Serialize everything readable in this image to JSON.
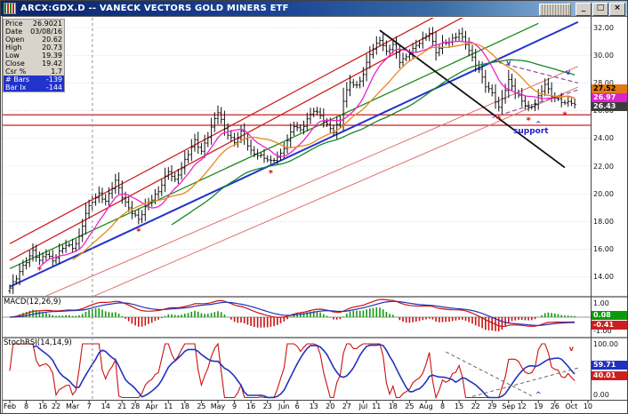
{
  "window": {
    "title": "ARCX:GDX.D -- VANECK VECTORS GOLD MINERS ETF",
    "controls": {
      "minimize": "_",
      "maximize": "□",
      "close": "×"
    }
  },
  "info_panel": {
    "rows": [
      {
        "label": "Price",
        "value": "26.9021"
      },
      {
        "label": "Date",
        "value": "03/08/16"
      },
      {
        "label": "Open",
        "value": "20.62"
      },
      {
        "label": "High",
        "value": "20.73"
      },
      {
        "label": "Low",
        "value": "19.39"
      },
      {
        "label": "Close",
        "value": "19.42"
      },
      {
        "label": "Csr %",
        "value": "1.7"
      }
    ],
    "highlight_rows": [
      {
        "label": "# Bars",
        "value": "-139"
      },
      {
        "label": "Bar Ix",
        "value": "-144"
      }
    ]
  },
  "price_axis": {
    "labels": [
      "32.00",
      "30.00",
      "28.00",
      "26.00",
      "24.00",
      "22.00",
      "20.00",
      "18.00",
      "16.00",
      "14.00"
    ],
    "tags": [
      {
        "value": "27.52",
        "bg": "#e07818",
        "fg": "#000000"
      },
      {
        "value": "26.97",
        "bg": "#dd22cc",
        "fg": "#ffffff"
      },
      {
        "value": "26.43",
        "bg": "#3c3c3c",
        "fg": "#ffffff"
      }
    ]
  },
  "macd_panel": {
    "label": "MACD(12,26,9)",
    "axis_labels": [
      "1.00",
      "-1.00"
    ],
    "tags": [
      {
        "value": "0.08",
        "bg": "#0a9a0a",
        "fg": "#ffffff"
      },
      {
        "value": "-0.41",
        "bg": "#cc2020",
        "fg": "#ffffff"
      }
    ]
  },
  "stoch_panel": {
    "label": "StochRSI(14,14,9)",
    "axis_labels": [
      "100.00",
      "0.00"
    ],
    "tags": [
      {
        "value": "59.71",
        "bg": "#2030c0",
        "fg": "#ffffff"
      },
      {
        "value": "40.01",
        "bg": "#cc2020",
        "fg": "#ffffff"
      }
    ]
  },
  "time_axis": {
    "ticks": [
      [
        "Feb",
        0
      ],
      [
        "8",
        5
      ],
      [
        "16",
        10
      ],
      [
        "22",
        14
      ],
      [
        "Mar",
        19
      ],
      [
        "7",
        24
      ],
      [
        "14",
        29
      ],
      [
        "21",
        34
      ],
      [
        "28",
        38
      ],
      [
        "Apr",
        43
      ],
      [
        "11",
        48
      ],
      [
        "18",
        53
      ],
      [
        "25",
        58
      ],
      [
        "May",
        63
      ],
      [
        "9",
        68
      ],
      [
        "16",
        73
      ],
      [
        "23",
        78
      ],
      [
        "Jun",
        83
      ],
      [
        "6",
        87
      ],
      [
        "13",
        92
      ],
      [
        "20",
        97
      ],
      [
        "27",
        102
      ],
      [
        "Jul",
        107
      ],
      [
        "11",
        111
      ],
      [
        "18",
        116
      ],
      [
        "25",
        121
      ],
      [
        "Aug",
        126
      ],
      [
        "8",
        131
      ],
      [
        "15",
        136
      ],
      [
        "22",
        141
      ],
      [
        "29",
        146
      ],
      [
        "Sep",
        151
      ],
      [
        "12",
        155
      ],
      [
        "19",
        160
      ],
      [
        "26",
        165
      ],
      [
        "Oct",
        170
      ],
      [
        "10",
        175
      ]
    ]
  },
  "annotations": {
    "support_label": "support",
    "asterisks": [
      [
        9,
        14.5
      ],
      [
        39,
        17.3
      ],
      [
        79,
        21.5
      ],
      [
        148,
        25.4
      ],
      [
        157,
        25.3
      ],
      [
        168,
        25.7
      ]
    ],
    "price_marks": [
      [
        "v",
        151,
        29.3,
        "#2233cc"
      ],
      [
        "v",
        169,
        28.6,
        "#2233cc"
      ],
      [
        "^",
        160,
        24.9,
        "#2233cc"
      ]
    ],
    "stoch_marks": [
      [
        "^",
        160,
        7,
        "#2233cc"
      ],
      [
        "v",
        170,
        92,
        "#cc2222"
      ]
    ],
    "stoch_dashed": [
      [
        132,
        85,
        158,
        3
      ],
      [
        140,
        2,
        172,
        55
      ]
    ]
  },
  "chart_data": {
    "type": "ohlc",
    "symbol": "ARCX:GDX.D",
    "title": "VANECK VECTORS GOLD MINERS ETF, daily bars Feb-Oct 2016",
    "y_axis_range": [
      12.7,
      32.7
    ],
    "bars_total": 172,
    "cursor_index": 25,
    "last_close": 26.43,
    "close_anchors": [
      [
        0,
        13.2
      ],
      [
        2,
        13.9
      ],
      [
        4,
        14.8
      ],
      [
        7,
        15.9
      ],
      [
        9,
        15.1
      ],
      [
        11,
        15.7
      ],
      [
        13,
        15.2
      ],
      [
        15,
        15.8
      ],
      [
        17,
        16.3
      ],
      [
        19,
        16.1
      ],
      [
        21,
        16.9
      ],
      [
        23,
        18.6
      ],
      [
        25,
        19.42
      ],
      [
        27,
        20.0
      ],
      [
        29,
        19.5
      ],
      [
        32,
        20.9
      ],
      [
        34,
        19.8
      ],
      [
        36,
        19.0
      ],
      [
        39,
        18.1
      ],
      [
        42,
        19.4
      ],
      [
        45,
        20.2
      ],
      [
        48,
        21.6
      ],
      [
        50,
        21.0
      ],
      [
        53,
        22.4
      ],
      [
        56,
        23.8
      ],
      [
        58,
        23.1
      ],
      [
        60,
        24.2
      ],
      [
        63,
        25.9
      ],
      [
        65,
        24.7
      ],
      [
        68,
        23.7
      ],
      [
        70,
        24.4
      ],
      [
        73,
        23.1
      ],
      [
        76,
        22.7
      ],
      [
        79,
        22.3
      ],
      [
        82,
        22.9
      ],
      [
        84,
        23.8
      ],
      [
        86,
        24.9
      ],
      [
        88,
        24.6
      ],
      [
        90,
        25.4
      ],
      [
        92,
        26.0
      ],
      [
        94,
        25.6
      ],
      [
        96,
        25.0
      ],
      [
        98,
        24.5
      ],
      [
        100,
        25.3
      ],
      [
        101,
        26.7
      ],
      [
        103,
        28.1
      ],
      [
        105,
        27.8
      ],
      [
        107,
        28.6
      ],
      [
        109,
        30.1
      ],
      [
        112,
        31.2
      ],
      [
        114,
        30.2
      ],
      [
        116,
        30.7
      ],
      [
        118,
        29.6
      ],
      [
        120,
        29.9
      ],
      [
        122,
        30.4
      ],
      [
        124,
        30.9
      ],
      [
        126,
        31.4
      ],
      [
        127,
        31.7
      ],
      [
        129,
        30.2
      ],
      [
        131,
        30.8
      ],
      [
        133,
        31.0
      ],
      [
        136,
        31.6
      ],
      [
        138,
        30.8
      ],
      [
        140,
        29.8
      ],
      [
        142,
        29.0
      ],
      [
        144,
        27.8
      ],
      [
        146,
        27.2
      ],
      [
        148,
        26.2
      ],
      [
        150,
        27.6
      ],
      [
        151,
        28.2
      ],
      [
        153,
        27.3
      ],
      [
        155,
        26.7
      ],
      [
        157,
        26.2
      ],
      [
        159,
        26.5
      ],
      [
        161,
        27.4
      ],
      [
        162,
        27.9
      ],
      [
        164,
        27.1
      ],
      [
        166,
        26.8
      ],
      [
        168,
        26.5
      ],
      [
        170,
        26.6
      ],
      [
        171,
        26.43
      ]
    ],
    "moving_averages": [
      {
        "name": "SMA10",
        "period": 10,
        "color": "#ee22cc",
        "last": 26.97
      },
      {
        "name": "SMA20",
        "period": 20,
        "color": "#e8881a",
        "last": 27.52
      },
      {
        "name": "SMA50",
        "period": 50,
        "color": "#15872a"
      }
    ],
    "trendlines": [
      {
        "i1": 0,
        "p1": 13.3,
        "i2": 172,
        "p2": 32.4,
        "color": "#2233cc",
        "w": 2
      },
      {
        "i1": 0,
        "p1": 14.6,
        "i2": 160,
        "p2": 32.3,
        "color": "#1a8a1a",
        "w": 1.3
      },
      {
        "i1": 0,
        "p1": 16.4,
        "i2": 172,
        "p2": 38.3,
        "color": "#cc2222",
        "w": 1.3
      },
      {
        "i1": 0,
        "p1": 15.2,
        "i2": 172,
        "p2": 37.2,
        "color": "#cc2222",
        "w": 1.3
      },
      {
        "i1": 0,
        "p1": 11.5,
        "i2": 172,
        "p2": 29.2,
        "color": "#e07070",
        "w": 1
      },
      {
        "i1": 0,
        "p1": 10.0,
        "i2": 172,
        "p2": 27.7,
        "color": "#e07070",
        "w": 1
      },
      {
        "i1": 112,
        "p1": 31.8,
        "i2": 168,
        "p2": 21.9,
        "color": "#111111",
        "w": 1.8
      },
      {
        "i1": 146,
        "p1": 29.6,
        "i2": 172,
        "p2": 28.0,
        "color": "#884499",
        "w": 1.1,
        "dash": true
      },
      {
        "i1": 146,
        "p1": 25.5,
        "i2": 172,
        "p2": 27.5,
        "color": "#884499",
        "w": 1.1,
        "dash": true
      }
    ],
    "horizontal_lines": [
      25.7,
      24.95
    ],
    "indicators": [
      {
        "name": "MACD",
        "params": "12,26,9",
        "last_values": {
          "histogram": 0.08,
          "macd": -0.41
        }
      },
      {
        "name": "StochRSI",
        "params": "14,14,9",
        "last_values": {
          "d": 59.71,
          "k": 40.01
        }
      }
    ]
  }
}
